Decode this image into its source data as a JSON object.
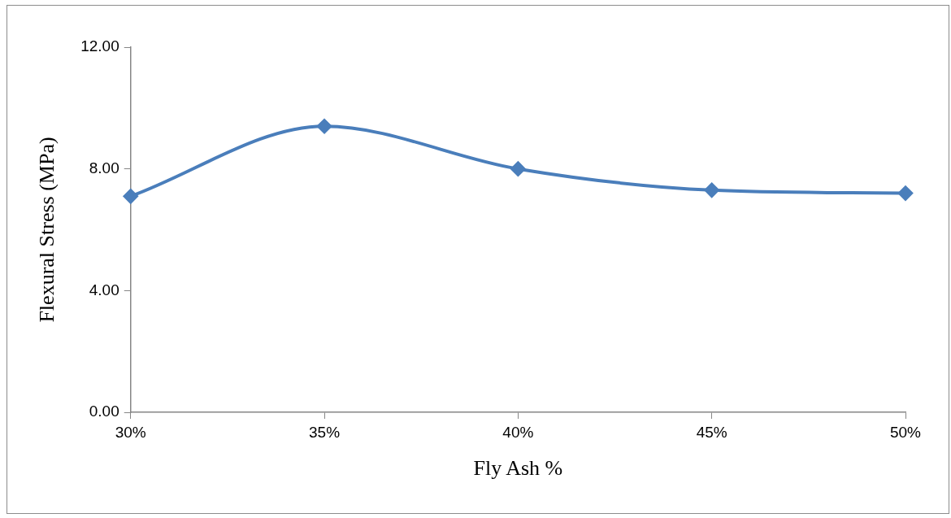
{
  "chart_data": {
    "type": "line",
    "xlabel": "Fly Ash %",
    "ylabel": "Flexural Stress (MPa)",
    "categories": [
      "30%",
      "35%",
      "40%",
      "45%",
      "50%"
    ],
    "series": [
      {
        "color": "#4a7ebb",
        "values": [
          7.1,
          9.4,
          8.0,
          7.3,
          7.2
        ]
      }
    ],
    "ylim": [
      0,
      12
    ],
    "yticks": [
      {
        "value": 0,
        "label": "0.00"
      },
      {
        "value": 4,
        "label": "4.00"
      },
      {
        "value": 8,
        "label": "8.00"
      },
      {
        "value": 12,
        "label": "12.00"
      }
    ],
    "grid": false,
    "legend": false,
    "marker": "diamond",
    "line_style": "solid"
  }
}
